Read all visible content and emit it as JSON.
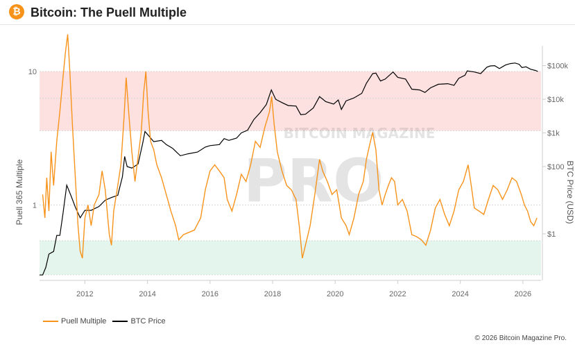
{
  "header": {
    "logo_glyph": "₿",
    "title": "Bitcoin: The Puell Multiple"
  },
  "watermark": {
    "top": "BITCOIN MAGAZINE",
    "main": "PRO"
  },
  "legend": [
    {
      "label": "Puell Multiple",
      "color": "#f7931a"
    },
    {
      "label": "BTC Price",
      "color": "#000000"
    }
  ],
  "footer": {
    "copyright": "© 2026 Bitcoin Magazine Pro."
  },
  "chart_data": {
    "type": "line",
    "xlabel": "",
    "ylabel_left": "Puell 365 Multiple",
    "ylabel_right": "BTC Price (USD)",
    "x_ticks": [
      2012,
      2014,
      2016,
      2018,
      2020,
      2022,
      2024,
      2026
    ],
    "left_axis": {
      "scale": "log",
      "ticks": [
        {
          "value": 1,
          "label": "1"
        },
        {
          "value": 10,
          "label": "10"
        }
      ]
    },
    "right_axis": {
      "scale": "log",
      "ticks": [
        {
          "value": 1,
          "label": "$1"
        },
        {
          "value": 100,
          "label": "$100"
        },
        {
          "value": 1000,
          "label": "$1k"
        },
        {
          "value": 10000,
          "label": "$10k"
        },
        {
          "value": 100000,
          "label": "$100k"
        }
      ]
    },
    "bands": [
      {
        "name": "overvalued zone",
        "from": 3.6,
        "to": 10,
        "color": "#fde0e0"
      },
      {
        "name": "undervalued zone",
        "from": 0.3,
        "to": 0.54,
        "color": "#e3f5ec"
      }
    ],
    "series": [
      {
        "name": "Puell Multiple",
        "color": "#f7931a",
        "points": [
          [
            2010.65,
            1.2
          ],
          [
            2010.72,
            0.8
          ],
          [
            2010.78,
            1.6
          ],
          [
            2010.85,
            0.9
          ],
          [
            2010.92,
            2.5
          ],
          [
            2011.0,
            1.4
          ],
          [
            2011.1,
            3.0
          ],
          [
            2011.2,
            5.0
          ],
          [
            2011.3,
            9.0
          ],
          [
            2011.38,
            14.0
          ],
          [
            2011.45,
            19.0
          ],
          [
            2011.52,
            10.0
          ],
          [
            2011.6,
            4.0
          ],
          [
            2011.7,
            1.5
          ],
          [
            2011.78,
            0.7
          ],
          [
            2011.85,
            0.45
          ],
          [
            2011.92,
            0.4
          ],
          [
            2012.0,
            0.8
          ],
          [
            2012.1,
            1.0
          ],
          [
            2012.2,
            0.7
          ],
          [
            2012.3,
            1.0
          ],
          [
            2012.45,
            1.2
          ],
          [
            2012.55,
            1.8
          ],
          [
            2012.65,
            1.3
          ],
          [
            2012.78,
            0.6
          ],
          [
            2012.85,
            0.5
          ],
          [
            2012.92,
            0.9
          ],
          [
            2013.05,
            1.4
          ],
          [
            2013.15,
            2.0
          ],
          [
            2013.25,
            4.5
          ],
          [
            2013.32,
            9.0
          ],
          [
            2013.4,
            5.0
          ],
          [
            2013.5,
            2.5
          ],
          [
            2013.6,
            1.5
          ],
          [
            2013.7,
            2.3
          ],
          [
            2013.8,
            3.5
          ],
          [
            2013.88,
            7.0
          ],
          [
            2013.95,
            10.0
          ],
          [
            2014.02,
            5.0
          ],
          [
            2014.1,
            3.0
          ],
          [
            2014.2,
            2.6
          ],
          [
            2014.3,
            2.0
          ],
          [
            2014.45,
            1.6
          ],
          [
            2014.6,
            1.2
          ],
          [
            2014.75,
            0.9
          ],
          [
            2014.9,
            0.7
          ],
          [
            2015.0,
            0.55
          ],
          [
            2015.15,
            0.6
          ],
          [
            2015.3,
            0.62
          ],
          [
            2015.5,
            0.65
          ],
          [
            2015.7,
            0.8
          ],
          [
            2015.85,
            1.3
          ],
          [
            2016.0,
            1.8
          ],
          [
            2016.15,
            2.0
          ],
          [
            2016.3,
            1.8
          ],
          [
            2016.45,
            1.6
          ],
          [
            2016.55,
            1.1
          ],
          [
            2016.7,
            0.9
          ],
          [
            2016.85,
            1.2
          ],
          [
            2017.0,
            1.7
          ],
          [
            2017.15,
            1.5
          ],
          [
            2017.3,
            2.0
          ],
          [
            2017.45,
            3.0
          ],
          [
            2017.6,
            2.7
          ],
          [
            2017.75,
            3.8
          ],
          [
            2017.9,
            5.0
          ],
          [
            2017.97,
            6.5
          ],
          [
            2018.05,
            4.0
          ],
          [
            2018.15,
            2.5
          ],
          [
            2018.3,
            1.8
          ],
          [
            2018.45,
            1.4
          ],
          [
            2018.6,
            1.3
          ],
          [
            2018.75,
            1.1
          ],
          [
            2018.85,
            0.7
          ],
          [
            2018.95,
            0.4
          ],
          [
            2019.05,
            0.5
          ],
          [
            2019.2,
            0.7
          ],
          [
            2019.35,
            1.2
          ],
          [
            2019.5,
            2.2
          ],
          [
            2019.6,
            1.8
          ],
          [
            2019.75,
            1.5
          ],
          [
            2019.9,
            1.2
          ],
          [
            2020.05,
            1.3
          ],
          [
            2020.2,
            0.8
          ],
          [
            2020.35,
            0.7
          ],
          [
            2020.45,
            0.6
          ],
          [
            2020.6,
            0.8
          ],
          [
            2020.75,
            1.2
          ],
          [
            2020.9,
            1.5
          ],
          [
            2021.0,
            2.2
          ],
          [
            2021.1,
            2.8
          ],
          [
            2021.2,
            3.5
          ],
          [
            2021.3,
            2.6
          ],
          [
            2021.4,
            1.3
          ],
          [
            2021.5,
            1.0
          ],
          [
            2021.6,
            1.2
          ],
          [
            2021.7,
            1.4
          ],
          [
            2021.8,
            1.6
          ],
          [
            2021.9,
            1.5
          ],
          [
            2022.0,
            1.0
          ],
          [
            2022.15,
            1.1
          ],
          [
            2022.3,
            0.9
          ],
          [
            2022.45,
            0.6
          ],
          [
            2022.6,
            0.58
          ],
          [
            2022.75,
            0.55
          ],
          [
            2022.9,
            0.5
          ],
          [
            2023.05,
            0.65
          ],
          [
            2023.2,
            0.95
          ],
          [
            2023.35,
            1.1
          ],
          [
            2023.5,
            0.85
          ],
          [
            2023.65,
            0.7
          ],
          [
            2023.8,
            0.9
          ],
          [
            2023.95,
            1.3
          ],
          [
            2024.1,
            1.5
          ],
          [
            2024.25,
            2.0
          ],
          [
            2024.35,
            1.4
          ],
          [
            2024.45,
            0.95
          ],
          [
            2024.6,
            0.9
          ],
          [
            2024.75,
            0.85
          ],
          [
            2024.9,
            1.1
          ],
          [
            2025.05,
            1.4
          ],
          [
            2025.2,
            1.3
          ],
          [
            2025.35,
            1.1
          ],
          [
            2025.5,
            1.3
          ],
          [
            2025.65,
            1.6
          ],
          [
            2025.8,
            1.5
          ],
          [
            2025.95,
            1.2
          ],
          [
            2026.05,
            1.0
          ],
          [
            2026.15,
            0.9
          ],
          [
            2026.25,
            0.75
          ],
          [
            2026.35,
            0.7
          ],
          [
            2026.45,
            0.8
          ]
        ]
      },
      {
        "name": "BTC Price",
        "color": "#000000",
        "axis": "right",
        "points": [
          [
            2010.55,
            0.06
          ],
          [
            2010.65,
            0.06
          ],
          [
            2010.75,
            0.1
          ],
          [
            2010.85,
            0.25
          ],
          [
            2011.0,
            0.3
          ],
          [
            2011.1,
            0.9
          ],
          [
            2011.2,
            0.9
          ],
          [
            2011.3,
            4.0
          ],
          [
            2011.42,
            28.0
          ],
          [
            2011.55,
            14.0
          ],
          [
            2011.7,
            6.0
          ],
          [
            2011.85,
            3.0
          ],
          [
            2012.0,
            5.0
          ],
          [
            2012.2,
            5.0
          ],
          [
            2012.45,
            6.5
          ],
          [
            2012.65,
            10.0
          ],
          [
            2012.85,
            12.0
          ],
          [
            2013.05,
            14.0
          ],
          [
            2013.2,
            50.0
          ],
          [
            2013.27,
            200.0
          ],
          [
            2013.35,
            100.0
          ],
          [
            2013.5,
            90.0
          ],
          [
            2013.7,
            120.0
          ],
          [
            2013.85,
            500.0
          ],
          [
            2013.92,
            1100.0
          ],
          [
            2014.05,
            800.0
          ],
          [
            2014.2,
            550.0
          ],
          [
            2014.45,
            600.0
          ],
          [
            2014.6,
            450.0
          ],
          [
            2014.8,
            350.0
          ],
          [
            2015.05,
            210.0
          ],
          [
            2015.3,
            240.0
          ],
          [
            2015.6,
            270.0
          ],
          [
            2015.85,
            380.0
          ],
          [
            2016.0,
            420.0
          ],
          [
            2016.3,
            450.0
          ],
          [
            2016.45,
            680.0
          ],
          [
            2016.6,
            600.0
          ],
          [
            2016.85,
            700.0
          ],
          [
            2017.0,
            1000.0
          ],
          [
            2017.2,
            1200.0
          ],
          [
            2017.4,
            2500.0
          ],
          [
            2017.6,
            4000.0
          ],
          [
            2017.8,
            7000.0
          ],
          [
            2017.96,
            19000.0
          ],
          [
            2018.1,
            10000.0
          ],
          [
            2018.3,
            8000.0
          ],
          [
            2018.5,
            6500.0
          ],
          [
            2018.75,
            6300.0
          ],
          [
            2018.9,
            3500.0
          ],
          [
            2019.05,
            3600.0
          ],
          [
            2019.3,
            5500.0
          ],
          [
            2019.5,
            12000.0
          ],
          [
            2019.7,
            8500.0
          ],
          [
            2019.95,
            7200.0
          ],
          [
            2020.1,
            9500.0
          ],
          [
            2020.2,
            5000.0
          ],
          [
            2020.35,
            9000.0
          ],
          [
            2020.6,
            11000.0
          ],
          [
            2020.85,
            15000.0
          ],
          [
            2021.0,
            30000.0
          ],
          [
            2021.2,
            58000.0
          ],
          [
            2021.3,
            60000.0
          ],
          [
            2021.45,
            35000.0
          ],
          [
            2021.6,
            40000.0
          ],
          [
            2021.85,
            65000.0
          ],
          [
            2022.0,
            45000.0
          ],
          [
            2022.25,
            40000.0
          ],
          [
            2022.45,
            20000.0
          ],
          [
            2022.7,
            19000.0
          ],
          [
            2022.87,
            16000.0
          ],
          [
            2023.05,
            22000.0
          ],
          [
            2023.3,
            28000.0
          ],
          [
            2023.6,
            29000.0
          ],
          [
            2023.8,
            26000.0
          ],
          [
            2023.95,
            42000.0
          ],
          [
            2024.15,
            52000.0
          ],
          [
            2024.22,
            70000.0
          ],
          [
            2024.45,
            65000.0
          ],
          [
            2024.65,
            58000.0
          ],
          [
            2024.85,
            90000.0
          ],
          [
            2024.96,
            98000.0
          ],
          [
            2025.1,
            100000.0
          ],
          [
            2025.25,
            82000.0
          ],
          [
            2025.45,
            105000.0
          ],
          [
            2025.6,
            115000.0
          ],
          [
            2025.75,
            120000.0
          ],
          [
            2025.88,
            110000.0
          ],
          [
            2025.97,
            88000.0
          ],
          [
            2026.1,
            92000.0
          ],
          [
            2026.25,
            78000.0
          ],
          [
            2026.4,
            72000.0
          ],
          [
            2026.48,
            67000.0
          ]
        ]
      }
    ],
    "legend_placement": "bottom-left",
    "grid": "horizontal dotted at left-axis ticks"
  }
}
